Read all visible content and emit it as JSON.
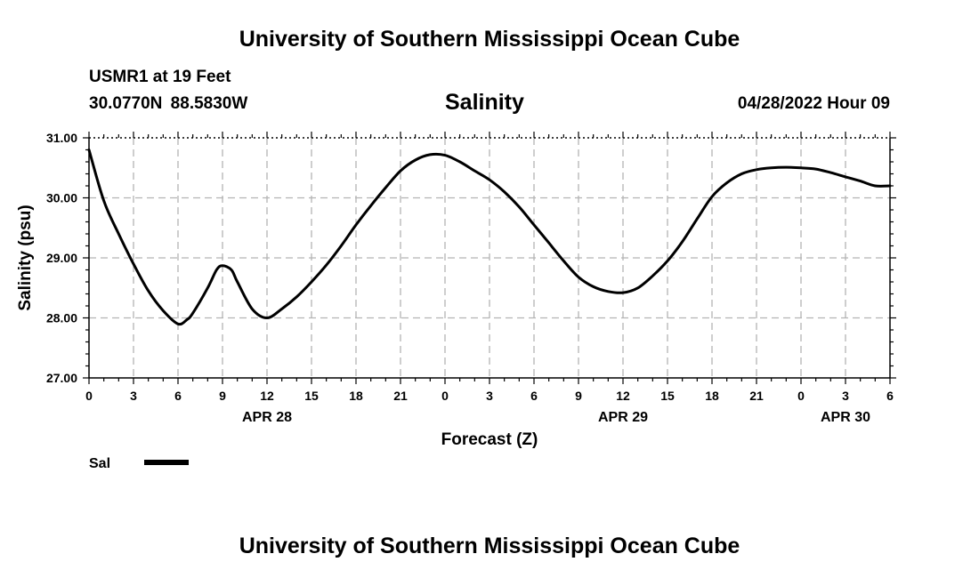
{
  "header": {
    "title": "University of Southern Mississippi Ocean Cube",
    "station": "USMR1 at 19 Feet",
    "coords": "30.0770N  88.5830W",
    "datetime": "04/28/2022 Hour 09"
  },
  "footer": {
    "title": "University of Southern Mississippi Ocean Cube"
  },
  "chart_data": {
    "type": "line",
    "title": "Salinity",
    "xlabel": "Forecast (Z)",
    "ylabel": "Salinity (psu)",
    "ylim": [
      27,
      31
    ],
    "xlim": [
      0,
      54
    ],
    "x_unit": "hours from 04/28 00Z",
    "y_ticks": [
      "27.00",
      "28.00",
      "29.00",
      "30.00",
      "31.00"
    ],
    "x_ticks": [
      "0",
      "3",
      "6",
      "9",
      "12",
      "15",
      "18",
      "21",
      "0",
      "3",
      "6",
      "9",
      "12",
      "15",
      "18",
      "21",
      "0",
      "3",
      "6"
    ],
    "date_labels": [
      {
        "label": "APR 28",
        "x": 12
      },
      {
        "label": "APR 29",
        "x": 36
      },
      {
        "label": "APR 30",
        "x": 51
      }
    ],
    "grid": true,
    "legend": "bottom-left",
    "series": [
      {
        "name": "Sal",
        "color": "#000000",
        "x": [
          0,
          1,
          2,
          3,
          4,
          5,
          6,
          6.6,
          7,
          8,
          8.6,
          9,
          9.6,
          10,
          11,
          12,
          13,
          14,
          15,
          16,
          17,
          18,
          19,
          20,
          21,
          22,
          23,
          24,
          25,
          26,
          27,
          28,
          29,
          30,
          31,
          32,
          33,
          34,
          35,
          36,
          37,
          38,
          39,
          40,
          41,
          42,
          43,
          44,
          45,
          46,
          47,
          48,
          49,
          50,
          51,
          52,
          53,
          54
        ],
        "values": [
          30.8,
          29.95,
          29.4,
          28.9,
          28.45,
          28.12,
          27.9,
          27.97,
          28.08,
          28.5,
          28.8,
          28.87,
          28.8,
          28.6,
          28.15,
          28.0,
          28.15,
          28.35,
          28.6,
          28.88,
          29.2,
          29.55,
          29.87,
          30.17,
          30.45,
          30.63,
          30.72,
          30.71,
          30.6,
          30.45,
          30.3,
          30.1,
          29.85,
          29.55,
          29.25,
          28.95,
          28.68,
          28.52,
          28.44,
          28.42,
          28.5,
          28.7,
          28.95,
          29.27,
          29.65,
          30.02,
          30.25,
          30.4,
          30.47,
          30.5,
          30.51,
          30.5,
          30.48,
          30.42,
          30.35,
          30.28,
          30.2,
          30.2
        ]
      }
    ]
  }
}
